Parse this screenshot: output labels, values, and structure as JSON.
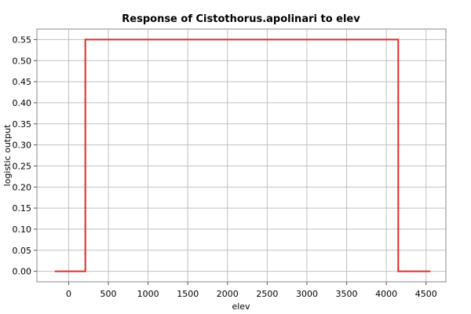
{
  "chart_data": {
    "type": "line",
    "title": "Response of Cistothorus.apolinari to elev",
    "xlabel": "elev",
    "ylabel": "logistic output",
    "xlim": [
      -400,
      4750
    ],
    "ylim": [
      -0.025,
      0.575
    ],
    "x_ticks": [
      0,
      500,
      1000,
      1500,
      2000,
      2500,
      3000,
      3500,
      4000,
      4500
    ],
    "y_ticks": [
      0.0,
      0.05,
      0.1,
      0.15,
      0.2,
      0.25,
      0.3,
      0.35,
      0.4,
      0.45,
      0.5,
      0.55
    ],
    "x_tick_labels": [
      "0",
      "500",
      "1000",
      "1500",
      "2000",
      "2500",
      "3000",
      "3500",
      "4000",
      "4500"
    ],
    "y_tick_labels": [
      "0.00",
      "0.05",
      "0.10",
      "0.15",
      "0.20",
      "0.25",
      "0.30",
      "0.35",
      "0.40",
      "0.45",
      "0.50",
      "0.55"
    ],
    "grid": true,
    "series": [
      {
        "color": "#e8282a",
        "points": [
          [
            -170,
            0.0
          ],
          [
            210,
            0.0
          ],
          [
            210,
            0.55
          ],
          [
            4150,
            0.55
          ],
          [
            4150,
            0.0
          ],
          [
            4550,
            0.0
          ]
        ]
      }
    ]
  }
}
